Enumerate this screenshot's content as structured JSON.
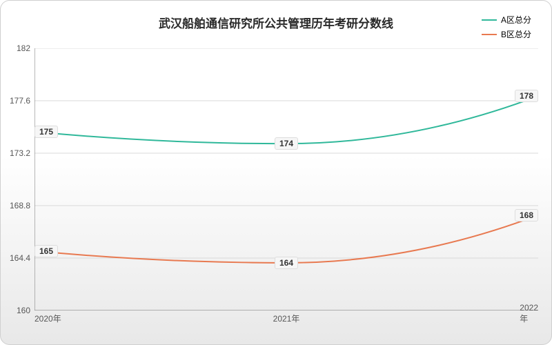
{
  "chart": {
    "type": "line",
    "title": "武汉船舶通信研究所公共管理历年考研分数线",
    "title_fontsize": 17,
    "background": {
      "top_color": "#ffffff",
      "bottom_color": "#e8e8e8",
      "gradient_stop": 0.45
    },
    "grid_color": "#d9d9d9",
    "axis_color": "#888888",
    "xlim": [
      0,
      2
    ],
    "ylim": [
      160,
      182
    ],
    "ytick_step": 4.4,
    "yticks": [
      "160",
      "164.4",
      "168.8",
      "173.2",
      "177.6",
      "182"
    ],
    "xticks": [
      "2020年",
      "2021年",
      "2022年"
    ],
    "tick_fontsize": 12,
    "label_fontsize": 12,
    "legend": {
      "position": "top-right",
      "fontsize": 12,
      "items": [
        {
          "label": "A区总分",
          "color": "#2fb89a"
        },
        {
          "label": "B区总分",
          "color": "#e87950"
        }
      ]
    },
    "series": [
      {
        "name": "A区总分",
        "color": "#2fb89a",
        "line_width": 2,
        "values": [
          175,
          174,
          178
        ],
        "smooth": true
      },
      {
        "name": "B区总分",
        "color": "#e87950",
        "line_width": 2,
        "values": [
          165,
          164,
          168
        ],
        "smooth": true
      }
    ],
    "point_label_bg": "#f6f6f6",
    "point_label_border": "#dddddd"
  }
}
